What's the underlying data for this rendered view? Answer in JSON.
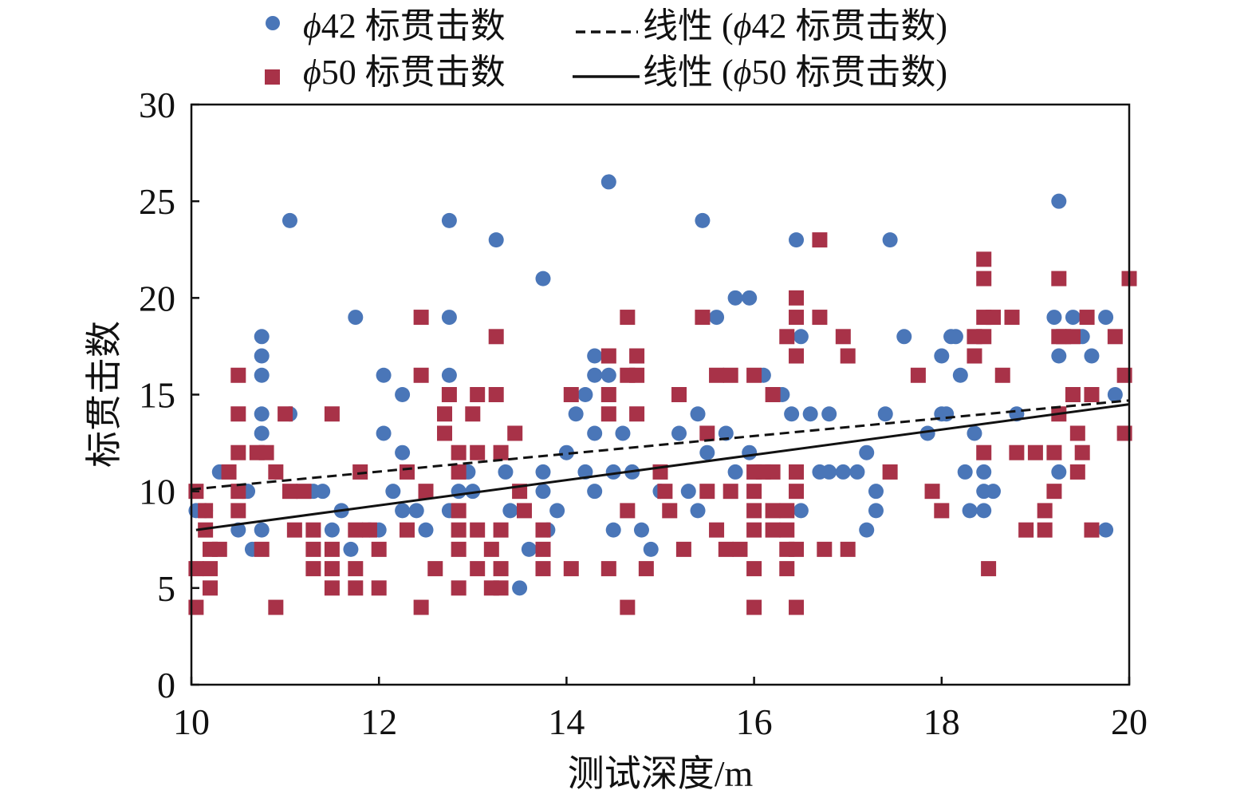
{
  "chart_data": {
    "type": "scatter",
    "xlabel": "测试深度/m",
    "ylabel": "标贯击数",
    "xlim": [
      10,
      20
    ],
    "ylim": [
      0,
      30
    ],
    "x_ticks": [
      10,
      12,
      14,
      16,
      18,
      20
    ],
    "y_ticks": [
      0,
      5,
      10,
      15,
      20,
      25,
      30
    ],
    "grid": false,
    "legend_position": "top",
    "colors": {
      "phi42": "#4a76b8",
      "phi50": "#a83248",
      "line": "#111111"
    },
    "series": [
      {
        "name": "ϕ42 标贯击数",
        "marker": "circle",
        "color": "#4a76b8",
        "points": [
          [
            10.05,
            9
          ],
          [
            10.15,
            9
          ],
          [
            10.3,
            11
          ],
          [
            10.5,
            8
          ],
          [
            10.55,
            10
          ],
          [
            10.6,
            10
          ],
          [
            10.65,
            7
          ],
          [
            10.75,
            18
          ],
          [
            10.75,
            17
          ],
          [
            10.75,
            16
          ],
          [
            10.75,
            14
          ],
          [
            10.75,
            13
          ],
          [
            10.75,
            8
          ],
          [
            11.05,
            24
          ],
          [
            11.05,
            14
          ],
          [
            11.3,
            10
          ],
          [
            11.4,
            10
          ],
          [
            11.5,
            8
          ],
          [
            11.6,
            9
          ],
          [
            11.7,
            7
          ],
          [
            11.75,
            19
          ],
          [
            11.9,
            8
          ],
          [
            12.0,
            8
          ],
          [
            12.05,
            16
          ],
          [
            12.05,
            13
          ],
          [
            12.15,
            10
          ],
          [
            12.25,
            15
          ],
          [
            12.25,
            12
          ],
          [
            12.25,
            9
          ],
          [
            12.4,
            9
          ],
          [
            12.5,
            8
          ],
          [
            12.75,
            24
          ],
          [
            12.75,
            19
          ],
          [
            12.75,
            16
          ],
          [
            12.75,
            9
          ],
          [
            12.85,
            10
          ],
          [
            12.95,
            11
          ],
          [
            13.0,
            10
          ],
          [
            13.25,
            23
          ],
          [
            13.35,
            11
          ],
          [
            13.4,
            9
          ],
          [
            13.5,
            5
          ],
          [
            13.6,
            7
          ],
          [
            13.75,
            21
          ],
          [
            13.75,
            11
          ],
          [
            13.75,
            10
          ],
          [
            13.8,
            8
          ],
          [
            13.9,
            9
          ],
          [
            14.0,
            12
          ],
          [
            14.1,
            14
          ],
          [
            14.2,
            15
          ],
          [
            14.2,
            11
          ],
          [
            14.3,
            17
          ],
          [
            14.3,
            16
          ],
          [
            14.3,
            13
          ],
          [
            14.3,
            10
          ],
          [
            14.45,
            26
          ],
          [
            14.45,
            16
          ],
          [
            14.5,
            11
          ],
          [
            14.5,
            8
          ],
          [
            14.6,
            13
          ],
          [
            14.7,
            11
          ],
          [
            14.8,
            8
          ],
          [
            14.9,
            7
          ],
          [
            15.0,
            10
          ],
          [
            15.2,
            13
          ],
          [
            15.3,
            10
          ],
          [
            15.4,
            14
          ],
          [
            15.4,
            9
          ],
          [
            15.45,
            24
          ],
          [
            15.5,
            12
          ],
          [
            15.6,
            19
          ],
          [
            15.7,
            13
          ],
          [
            15.8,
            11
          ],
          [
            15.8,
            20
          ],
          [
            15.95,
            20
          ],
          [
            15.95,
            12
          ],
          [
            16.1,
            16
          ],
          [
            16.3,
            15
          ],
          [
            16.4,
            14
          ],
          [
            16.5,
            18
          ],
          [
            16.45,
            23
          ],
          [
            16.5,
            9
          ],
          [
            16.6,
            14
          ],
          [
            16.7,
            11
          ],
          [
            16.8,
            14
          ],
          [
            16.8,
            11
          ],
          [
            16.95,
            11
          ],
          [
            17.1,
            11
          ],
          [
            17.2,
            8
          ],
          [
            17.2,
            12
          ],
          [
            17.3,
            10
          ],
          [
            17.3,
            9
          ],
          [
            17.4,
            14
          ],
          [
            17.45,
            23
          ],
          [
            17.6,
            18
          ],
          [
            17.85,
            13
          ],
          [
            18.0,
            14
          ],
          [
            18.0,
            17
          ],
          [
            18.05,
            14
          ],
          [
            18.1,
            18
          ],
          [
            18.15,
            18
          ],
          [
            18.2,
            16
          ],
          [
            18.25,
            11
          ],
          [
            18.3,
            9
          ],
          [
            18.35,
            13
          ],
          [
            18.45,
            11
          ],
          [
            18.45,
            10
          ],
          [
            18.45,
            9
          ],
          [
            18.55,
            10
          ],
          [
            18.8,
            14
          ],
          [
            19.2,
            19
          ],
          [
            19.25,
            25
          ],
          [
            19.25,
            17
          ],
          [
            19.25,
            11
          ],
          [
            19.4,
            19
          ],
          [
            19.5,
            18
          ],
          [
            19.6,
            17
          ],
          [
            19.75,
            19
          ],
          [
            19.75,
            8
          ],
          [
            19.85,
            15
          ]
        ]
      },
      {
        "name": "ϕ50 标贯击数",
        "marker": "square",
        "color": "#a83248",
        "points": [
          [
            10.05,
            10
          ],
          [
            10.05,
            6
          ],
          [
            10.05,
            4
          ],
          [
            10.15,
            9
          ],
          [
            10.15,
            8
          ],
          [
            10.2,
            7
          ],
          [
            10.2,
            6
          ],
          [
            10.2,
            5
          ],
          [
            10.3,
            7
          ],
          [
            10.4,
            11
          ],
          [
            10.5,
            16
          ],
          [
            10.5,
            14
          ],
          [
            10.5,
            12
          ],
          [
            10.5,
            10
          ],
          [
            10.5,
            9
          ],
          [
            10.7,
            12
          ],
          [
            10.8,
            12
          ],
          [
            10.75,
            7
          ],
          [
            10.9,
            11
          ],
          [
            10.9,
            4
          ],
          [
            11.0,
            14
          ],
          [
            11.05,
            10
          ],
          [
            11.1,
            8
          ],
          [
            11.2,
            10
          ],
          [
            11.3,
            8
          ],
          [
            11.3,
            7
          ],
          [
            11.3,
            6
          ],
          [
            11.5,
            14
          ],
          [
            11.5,
            7
          ],
          [
            11.5,
            6
          ],
          [
            11.5,
            5
          ],
          [
            11.75,
            8
          ],
          [
            11.75,
            6
          ],
          [
            11.75,
            5
          ],
          [
            11.8,
            11
          ],
          [
            11.9,
            8
          ],
          [
            12.0,
            7
          ],
          [
            12.0,
            5
          ],
          [
            12.3,
            11
          ],
          [
            12.3,
            8
          ],
          [
            12.45,
            19
          ],
          [
            12.45,
            16
          ],
          [
            12.45,
            4
          ],
          [
            12.5,
            10
          ],
          [
            12.6,
            6
          ],
          [
            12.7,
            14
          ],
          [
            12.7,
            13
          ],
          [
            12.75,
            15
          ],
          [
            12.85,
            12
          ],
          [
            12.85,
            11
          ],
          [
            12.85,
            9
          ],
          [
            12.85,
            8
          ],
          [
            12.85,
            7
          ],
          [
            12.85,
            5
          ],
          [
            13.0,
            14
          ],
          [
            13.05,
            15
          ],
          [
            13.05,
            12
          ],
          [
            13.05,
            8
          ],
          [
            13.05,
            6
          ],
          [
            13.2,
            7
          ],
          [
            13.2,
            5
          ],
          [
            13.25,
            18
          ],
          [
            13.25,
            15
          ],
          [
            13.3,
            12
          ],
          [
            13.3,
            8
          ],
          [
            13.3,
            6
          ],
          [
            13.3,
            5
          ],
          [
            13.45,
            13
          ],
          [
            13.5,
            10
          ],
          [
            13.55,
            9
          ],
          [
            13.75,
            8
          ],
          [
            13.75,
            7
          ],
          [
            13.75,
            6
          ],
          [
            14.05,
            15
          ],
          [
            14.05,
            6
          ],
          [
            14.45,
            17
          ],
          [
            14.45,
            15
          ],
          [
            14.45,
            14
          ],
          [
            14.45,
            6
          ],
          [
            14.65,
            19
          ],
          [
            14.65,
            16
          ],
          [
            14.65,
            9
          ],
          [
            14.65,
            4
          ],
          [
            14.75,
            17
          ],
          [
            14.75,
            16
          ],
          [
            14.75,
            14
          ],
          [
            14.85,
            6
          ],
          [
            15.0,
            11
          ],
          [
            15.05,
            10
          ],
          [
            15.1,
            9
          ],
          [
            15.2,
            15
          ],
          [
            15.25,
            7
          ],
          [
            15.45,
            19
          ],
          [
            15.5,
            13
          ],
          [
            15.5,
            10
          ],
          [
            15.6,
            16
          ],
          [
            15.6,
            8
          ],
          [
            15.7,
            7
          ],
          [
            15.75,
            16
          ],
          [
            15.75,
            10
          ],
          [
            15.85,
            7
          ],
          [
            16.0,
            16
          ],
          [
            16.0,
            11
          ],
          [
            16.0,
            10
          ],
          [
            16.0,
            9
          ],
          [
            16.0,
            8
          ],
          [
            16.0,
            6
          ],
          [
            16.0,
            4
          ],
          [
            16.1,
            11
          ],
          [
            16.2,
            15
          ],
          [
            16.2,
            11
          ],
          [
            16.2,
            9
          ],
          [
            16.2,
            8
          ],
          [
            16.35,
            18
          ],
          [
            16.35,
            9
          ],
          [
            16.35,
            8
          ],
          [
            16.35,
            7
          ],
          [
            16.35,
            6
          ],
          [
            16.45,
            20
          ],
          [
            16.45,
            19
          ],
          [
            16.45,
            17
          ],
          [
            16.45,
            11
          ],
          [
            16.45,
            10
          ],
          [
            16.45,
            7
          ],
          [
            16.45,
            4
          ],
          [
            16.7,
            23
          ],
          [
            16.7,
            19
          ],
          [
            16.75,
            7
          ],
          [
            16.95,
            18
          ],
          [
            17.0,
            17
          ],
          [
            17.0,
            7
          ],
          [
            17.45,
            11
          ],
          [
            17.75,
            16
          ],
          [
            17.9,
            10
          ],
          [
            18.0,
            9
          ],
          [
            18.35,
            18
          ],
          [
            18.35,
            17
          ],
          [
            18.45,
            22
          ],
          [
            18.45,
            21
          ],
          [
            18.45,
            19
          ],
          [
            18.45,
            18
          ],
          [
            18.45,
            12
          ],
          [
            18.5,
            6
          ],
          [
            18.55,
            19
          ],
          [
            18.65,
            16
          ],
          [
            18.75,
            19
          ],
          [
            18.8,
            12
          ],
          [
            18.9,
            8
          ],
          [
            19.0,
            12
          ],
          [
            19.1,
            9
          ],
          [
            19.1,
            8
          ],
          [
            19.2,
            12
          ],
          [
            19.2,
            10
          ],
          [
            19.25,
            18
          ],
          [
            19.25,
            14
          ],
          [
            19.25,
            21
          ],
          [
            19.3,
            18
          ],
          [
            19.4,
            18
          ],
          [
            19.4,
            15
          ],
          [
            19.45,
            13
          ],
          [
            19.45,
            11
          ],
          [
            19.5,
            12
          ],
          [
            19.55,
            19
          ],
          [
            19.6,
            15
          ],
          [
            19.6,
            8
          ],
          [
            19.85,
            18
          ],
          [
            19.95,
            16
          ],
          [
            19.95,
            13
          ],
          [
            20.0,
            21
          ]
        ]
      }
    ],
    "trendlines": [
      {
        "name": "线性 (ϕ42 标贯击数)",
        "style": "dashed",
        "x": [
          10.0,
          20.0
        ],
        "y": [
          10.1,
          14.7
        ]
      },
      {
        "name": "线性 (ϕ50 标贯击数)",
        "style": "solid",
        "x": [
          10.05,
          20.0
        ],
        "y": [
          8.0,
          14.5
        ]
      }
    ]
  },
  "legend": {
    "items": [
      {
        "marker": "circle",
        "symbol": "ϕ",
        "text": "42 标贯击数"
      },
      {
        "marker": "dashed-line",
        "text": "线性 (",
        "symbol": "ϕ",
        "text_after": "42 标贯击数)"
      },
      {
        "marker": "square",
        "symbol": "ϕ",
        "text": "50 标贯击数"
      },
      {
        "marker": "solid-line",
        "text": "线性 (",
        "symbol": "ϕ",
        "text_after": "50 标贯击数)"
      }
    ]
  }
}
